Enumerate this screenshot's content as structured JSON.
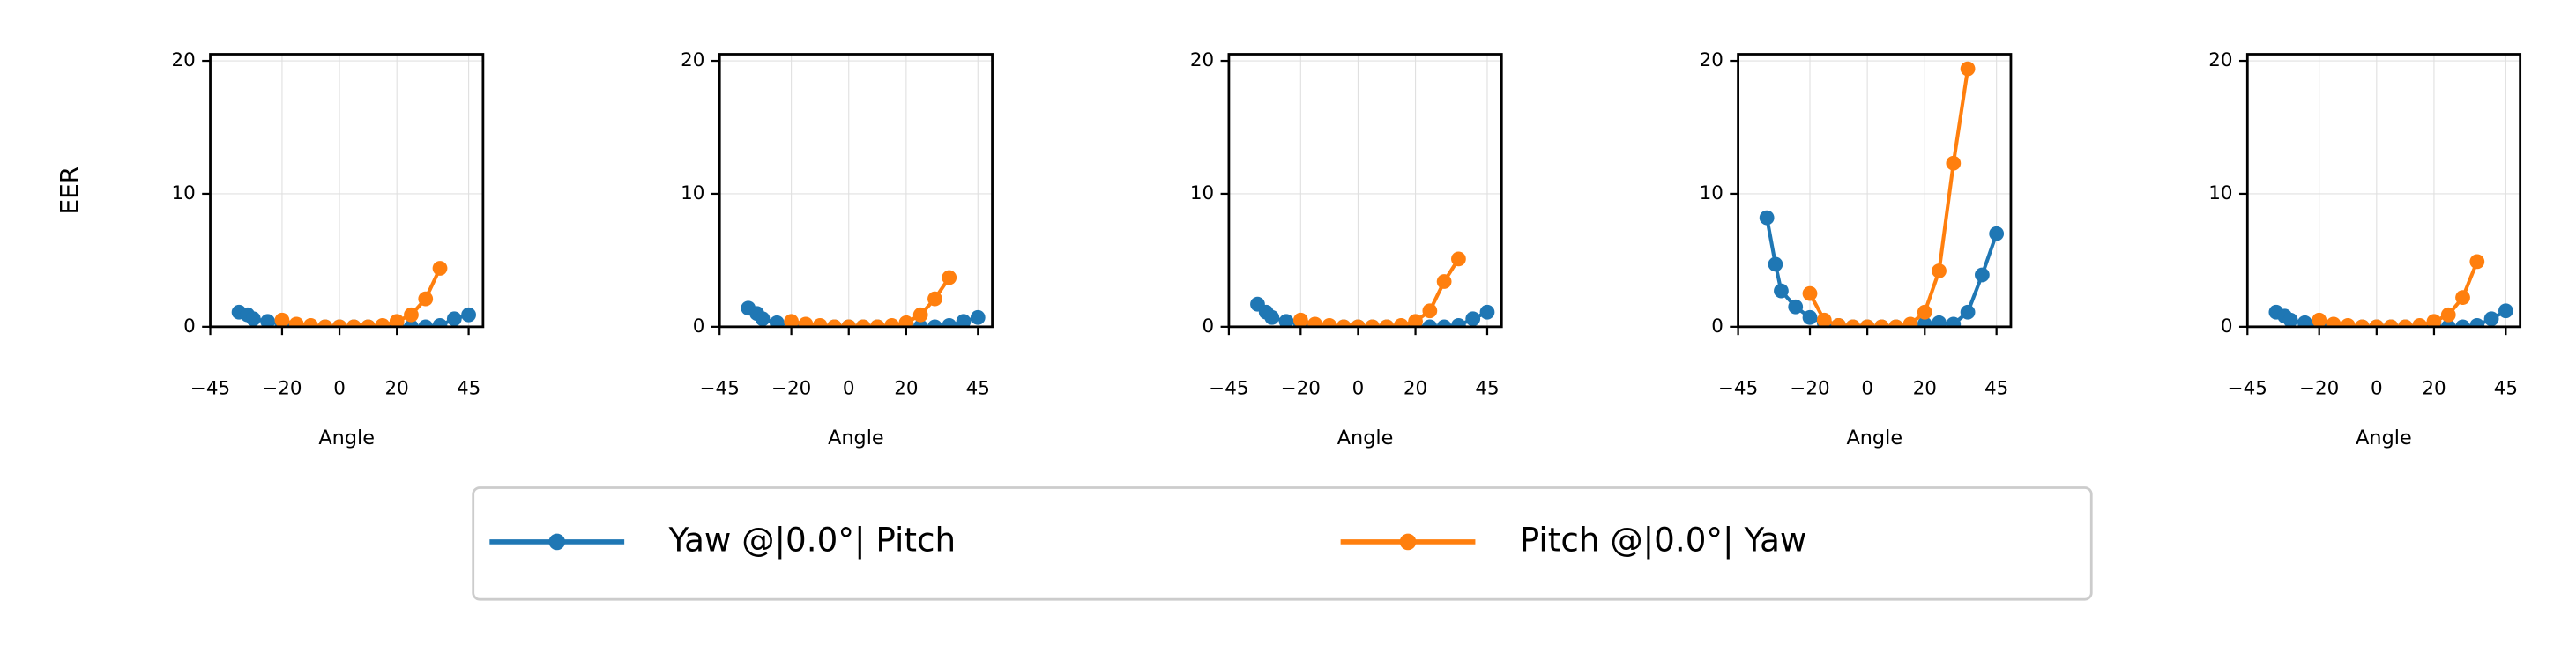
{
  "chart_data": [
    {
      "type": "line",
      "ylabel": "EER",
      "xlabel": "Angle",
      "xlim": [
        -45,
        50
      ],
      "ylim": [
        0,
        20.5
      ],
      "xticks": [
        {
          "value": -45,
          "label": "−45"
        },
        {
          "value": -20,
          "label": "−20"
        },
        0,
        20,
        45
      ],
      "yticks": [
        0,
        10,
        20
      ],
      "grid": true,
      "series": [
        {
          "name": "Yaw @|0.0°| Pitch",
          "color": "#1f77b4",
          "x": [
            -35,
            -32,
            -30,
            -25,
            -20,
            -15,
            -10,
            -5,
            0,
            5,
            10,
            15,
            20,
            25,
            30,
            35,
            40,
            45
          ],
          "values": [
            1.1,
            0.9,
            0.6,
            0.4,
            0.2,
            0.1,
            0,
            0,
            0,
            0,
            0,
            0,
            0,
            0,
            0,
            0.1,
            0.6,
            0.9
          ]
        },
        {
          "name": "Pitch @|0.0°| Yaw",
          "color": "#ff7f0e",
          "x": [
            -20,
            -15,
            -10,
            -5,
            0,
            5,
            10,
            15,
            20,
            25,
            30,
            35
          ],
          "values": [
            0.5,
            0.2,
            0.1,
            0,
            0,
            0,
            0,
            0.1,
            0.4,
            0.9,
            2.1,
            4.4
          ]
        }
      ]
    },
    {
      "type": "line",
      "xlabel": "Angle",
      "xlim": [
        -45,
        50
      ],
      "ylim": [
        0,
        20.5
      ],
      "xticks": [
        {
          "value": -45,
          "label": "−45"
        },
        {
          "value": -20,
          "label": "−20"
        },
        0,
        20,
        45
      ],
      "yticks": [
        0,
        10,
        20
      ],
      "grid": true,
      "series": [
        {
          "color": "#1f77b4",
          "x": [
            -35,
            -32,
            -30,
            -25,
            -20,
            -15,
            -10,
            -5,
            0,
            5,
            10,
            15,
            20,
            25,
            30,
            35,
            40,
            45
          ],
          "values": [
            1.4,
            1.0,
            0.6,
            0.3,
            0.2,
            0.1,
            0,
            0,
            0,
            0,
            0,
            0,
            0,
            0,
            0,
            0.1,
            0.4,
            0.7
          ]
        },
        {
          "color": "#ff7f0e",
          "x": [
            -20,
            -15,
            -10,
            -5,
            0,
            5,
            10,
            15,
            20,
            25,
            30,
            35
          ],
          "values": [
            0.4,
            0.2,
            0.1,
            0,
            0,
            0,
            0,
            0.1,
            0.3,
            0.9,
            2.1,
            3.7
          ]
        }
      ]
    },
    {
      "type": "line",
      "xlabel": "Angle",
      "xlim": [
        -45,
        50
      ],
      "ylim": [
        0,
        20.5
      ],
      "xticks": [
        {
          "value": -45,
          "label": "−45"
        },
        {
          "value": -20,
          "label": "−20"
        },
        0,
        20,
        45
      ],
      "yticks": [
        0,
        10,
        20
      ],
      "grid": true,
      "series": [
        {
          "color": "#1f77b4",
          "x": [
            -35,
            -32,
            -30,
            -25,
            -20,
            -15,
            -10,
            -5,
            0,
            5,
            10,
            15,
            20,
            25,
            30,
            35,
            40,
            45
          ],
          "values": [
            1.7,
            1.1,
            0.7,
            0.4,
            0.2,
            0.1,
            0,
            0,
            0,
            0,
            0,
            0,
            0,
            0,
            0,
            0.1,
            0.6,
            1.1
          ]
        },
        {
          "color": "#ff7f0e",
          "x": [
            -20,
            -15,
            -10,
            -5,
            0,
            5,
            10,
            15,
            20,
            25,
            30,
            35
          ],
          "values": [
            0.5,
            0.2,
            0.1,
            0,
            0,
            0,
            0,
            0.1,
            0.4,
            1.2,
            3.4,
            5.1
          ]
        }
      ]
    },
    {
      "type": "line",
      "xlabel": "Angle",
      "xlim": [
        -45,
        50
      ],
      "ylim": [
        0,
        20.5
      ],
      "xticks": [
        {
          "value": -45,
          "label": "−45"
        },
        {
          "value": -20,
          "label": "−20"
        },
        0,
        20,
        45
      ],
      "yticks": [
        0,
        10,
        20
      ],
      "grid": true,
      "series": [
        {
          "color": "#1f77b4",
          "x": [
            -35,
            -32,
            -30,
            -25,
            -20,
            -15,
            -10,
            -5,
            0,
            5,
            10,
            15,
            20,
            25,
            30,
            35,
            40,
            45
          ],
          "values": [
            8.2,
            4.7,
            2.7,
            1.5,
            0.7,
            0.3,
            0.1,
            0,
            0,
            0,
            0,
            0,
            0.2,
            0.3,
            0.2,
            1.1,
            3.9,
            7.0
          ]
        },
        {
          "color": "#ff7f0e",
          "x": [
            -20,
            -15,
            -10,
            -5,
            0,
            5,
            10,
            15,
            20,
            25,
            30,
            35
          ],
          "values": [
            2.5,
            0.5,
            0.1,
            0,
            0,
            0,
            0,
            0.2,
            1.1,
            4.2,
            12.3,
            19.4
          ]
        }
      ]
    },
    {
      "type": "line",
      "xlabel": "Angle",
      "xlim": [
        -45,
        50
      ],
      "ylim": [
        0,
        20.5
      ],
      "xticks": [
        {
          "value": -45,
          "label": "−45"
        },
        {
          "value": -20,
          "label": "−20"
        },
        0,
        20,
        45
      ],
      "yticks": [
        0,
        10,
        20
      ],
      "grid": true,
      "series": [
        {
          "color": "#1f77b4",
          "x": [
            -35,
            -32,
            -30,
            -25,
            -20,
            -15,
            -10,
            -5,
            0,
            5,
            10,
            15,
            20,
            25,
            30,
            35,
            40,
            45
          ],
          "values": [
            1.1,
            0.8,
            0.5,
            0.3,
            0.2,
            0.1,
            0,
            0,
            0,
            0,
            0,
            0,
            0,
            0,
            0,
            0.1,
            0.6,
            1.2
          ]
        },
        {
          "color": "#ff7f0e",
          "x": [
            -20,
            -15,
            -10,
            -5,
            0,
            5,
            10,
            15,
            20,
            25,
            30,
            35
          ],
          "values": [
            0.5,
            0.2,
            0.1,
            0,
            0,
            0,
            0,
            0.1,
            0.4,
            0.9,
            2.2,
            4.9
          ]
        }
      ]
    }
  ]
}
